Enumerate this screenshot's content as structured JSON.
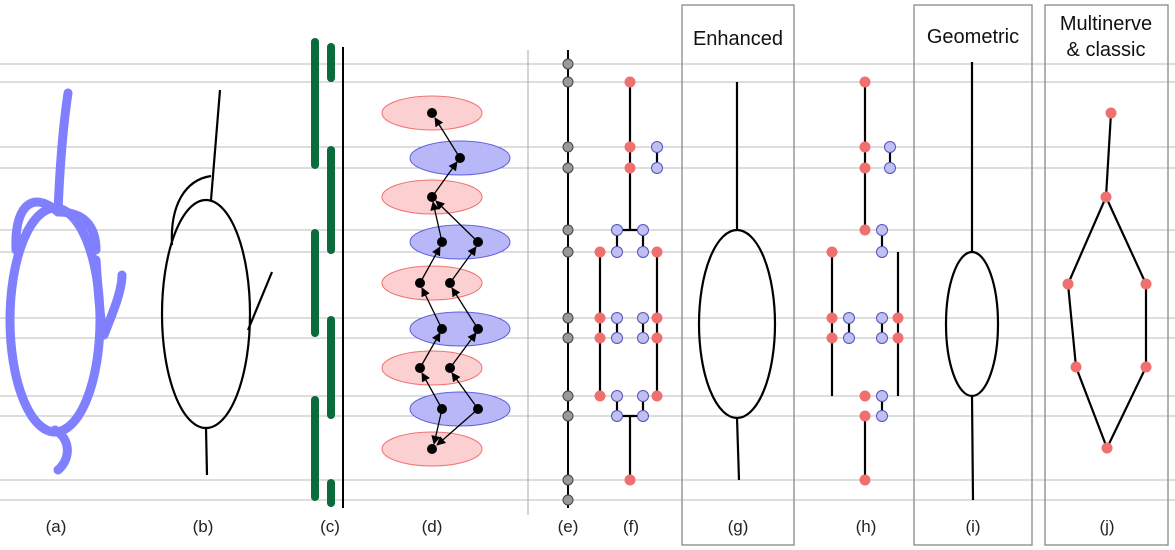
{
  "figure": {
    "panel_labels": [
      "(a)",
      "(b)",
      "(c)",
      "(d)",
      "(e)",
      "(f)",
      "(g)",
      "(h)",
      "(i)",
      "(j)"
    ],
    "boxed_titles": {
      "g": "Enhanced",
      "i": "Geometric",
      "j_line1": "Multinerve",
      "j_line2": "& classic"
    }
  },
  "colors": {
    "curve_blue": "#8080ff",
    "bar_green": "#0b6b3a",
    "red_node": "#f07070",
    "red_ellipse": "#fcd0d0",
    "blue_ellipse": "#b8b8f8",
    "blue_node": "#c0c0f0",
    "gray_node": "#999999",
    "rule_gray": "#bbbbbb"
  }
}
